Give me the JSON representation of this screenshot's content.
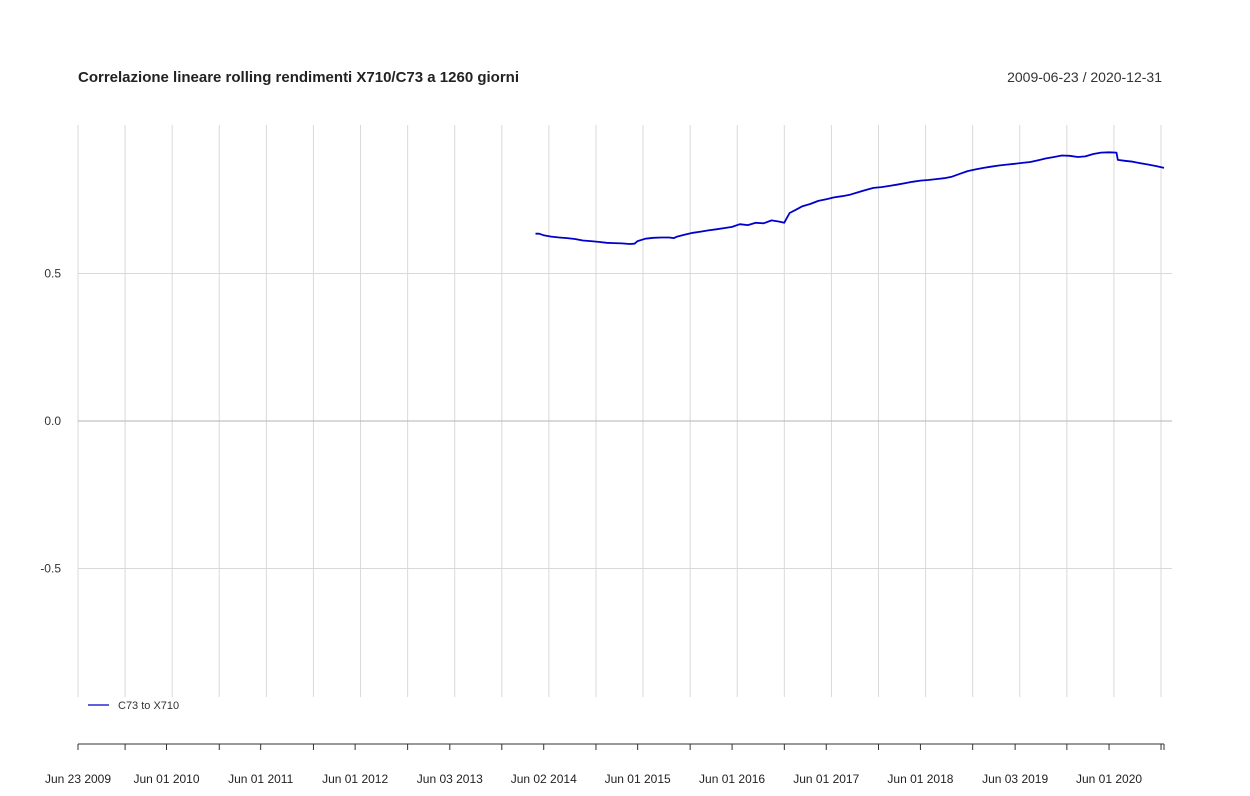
{
  "chart_data": {
    "type": "line",
    "title": "Correlazione lineare rolling rendimenti X710/C73 a 1260 giorni",
    "date_range": "2009-06-23 / 2020-12-31",
    "x_start": "2009-06-23",
    "x_end": "2020-12-31",
    "ylim": [
      -1,
      1
    ],
    "y_ticks": [
      0.5,
      0.0,
      -0.5
    ],
    "y_tick_labels": [
      "0.5",
      "0.0",
      "-0.5"
    ],
    "x_tick_dates": [
      "2009-06-23",
      "2010-06-01",
      "2011-06-01",
      "2012-06-01",
      "2013-06-03",
      "2014-06-02",
      "2015-06-01",
      "2016-06-01",
      "2017-06-01",
      "2018-06-01",
      "2019-06-03",
      "2020-06-01"
    ],
    "x_tick_labels": [
      "Jun 23 2009",
      "Jun 01 2010",
      "Jun 01 2011",
      "Jun 01 2012",
      "Jun 03 2013",
      "Jun 02 2014",
      "Jun 01 2015",
      "Jun 01 2016",
      "Jun 01 2017",
      "Jun 01 2018",
      "Jun 03 2019",
      "Jun 01 2020"
    ],
    "grid": true,
    "legend_position": "bottom-left",
    "series": [
      {
        "name": "C73 to X710",
        "color": "#0000CC",
        "points": [
          [
            "2014-05-01",
            0.635
          ],
          [
            "2014-05-15",
            0.635
          ],
          [
            "2014-06-01",
            0.63
          ],
          [
            "2014-07-01",
            0.625
          ],
          [
            "2014-08-01",
            0.622
          ],
          [
            "2014-09-01",
            0.62
          ],
          [
            "2014-10-01",
            0.617
          ],
          [
            "2014-11-01",
            0.612
          ],
          [
            "2014-12-01",
            0.61
          ],
          [
            "2015-01-01",
            0.607
          ],
          [
            "2015-02-01",
            0.604
          ],
          [
            "2015-03-01",
            0.603
          ],
          [
            "2015-04-01",
            0.602
          ],
          [
            "2015-05-01",
            0.6
          ],
          [
            "2015-05-20",
            0.601
          ],
          [
            "2015-06-01",
            0.61
          ],
          [
            "2015-07-01",
            0.618
          ],
          [
            "2015-08-01",
            0.621
          ],
          [
            "2015-09-01",
            0.622
          ],
          [
            "2015-10-01",
            0.622
          ],
          [
            "2015-10-20",
            0.62
          ],
          [
            "2015-11-01",
            0.625
          ],
          [
            "2015-12-01",
            0.632
          ],
          [
            "2016-01-01",
            0.638
          ],
          [
            "2016-02-01",
            0.642
          ],
          [
            "2016-03-01",
            0.646
          ],
          [
            "2016-04-01",
            0.65
          ],
          [
            "2016-05-01",
            0.654
          ],
          [
            "2016-06-01",
            0.658
          ],
          [
            "2016-07-01",
            0.667
          ],
          [
            "2016-08-01",
            0.664
          ],
          [
            "2016-09-01",
            0.672
          ],
          [
            "2016-10-01",
            0.67
          ],
          [
            "2016-11-01",
            0.68
          ],
          [
            "2016-12-01",
            0.676
          ],
          [
            "2016-12-20",
            0.672
          ],
          [
            "2017-01-10",
            0.705
          ],
          [
            "2017-02-01",
            0.715
          ],
          [
            "2017-03-01",
            0.728
          ],
          [
            "2017-04-01",
            0.736
          ],
          [
            "2017-05-01",
            0.746
          ],
          [
            "2017-06-01",
            0.752
          ],
          [
            "2017-07-01",
            0.758
          ],
          [
            "2017-08-01",
            0.762
          ],
          [
            "2017-09-01",
            0.767
          ],
          [
            "2017-10-01",
            0.775
          ],
          [
            "2017-11-01",
            0.783
          ],
          [
            "2017-12-01",
            0.79
          ],
          [
            "2018-01-01",
            0.793
          ],
          [
            "2018-02-01",
            0.797
          ],
          [
            "2018-03-01",
            0.801
          ],
          [
            "2018-04-01",
            0.806
          ],
          [
            "2018-05-01",
            0.811
          ],
          [
            "2018-06-01",
            0.815
          ],
          [
            "2018-07-01",
            0.817
          ],
          [
            "2018-08-01",
            0.82
          ],
          [
            "2018-09-01",
            0.823
          ],
          [
            "2018-10-01",
            0.828
          ],
          [
            "2018-11-01",
            0.838
          ],
          [
            "2018-12-01",
            0.847
          ],
          [
            "2019-01-01",
            0.853
          ],
          [
            "2019-02-01",
            0.858
          ],
          [
            "2019-03-01",
            0.862
          ],
          [
            "2019-04-01",
            0.866
          ],
          [
            "2019-05-01",
            0.869
          ],
          [
            "2019-06-01",
            0.872
          ],
          [
            "2019-07-01",
            0.875
          ],
          [
            "2019-08-01",
            0.878
          ],
          [
            "2019-09-01",
            0.884
          ],
          [
            "2019-10-01",
            0.89
          ],
          [
            "2019-11-01",
            0.895
          ],
          [
            "2019-12-01",
            0.9
          ],
          [
            "2020-01-01",
            0.899
          ],
          [
            "2020-02-01",
            0.895
          ],
          [
            "2020-03-01",
            0.897
          ],
          [
            "2020-04-01",
            0.905
          ],
          [
            "2020-05-01",
            0.91
          ],
          [
            "2020-06-01",
            0.911
          ],
          [
            "2020-06-30",
            0.91
          ],
          [
            "2020-07-05",
            0.885
          ],
          [
            "2020-08-01",
            0.882
          ],
          [
            "2020-09-01",
            0.879
          ],
          [
            "2020-10-01",
            0.874
          ],
          [
            "2020-11-01",
            0.869
          ],
          [
            "2020-12-01",
            0.864
          ],
          [
            "2020-12-31",
            0.858
          ]
        ]
      }
    ]
  }
}
